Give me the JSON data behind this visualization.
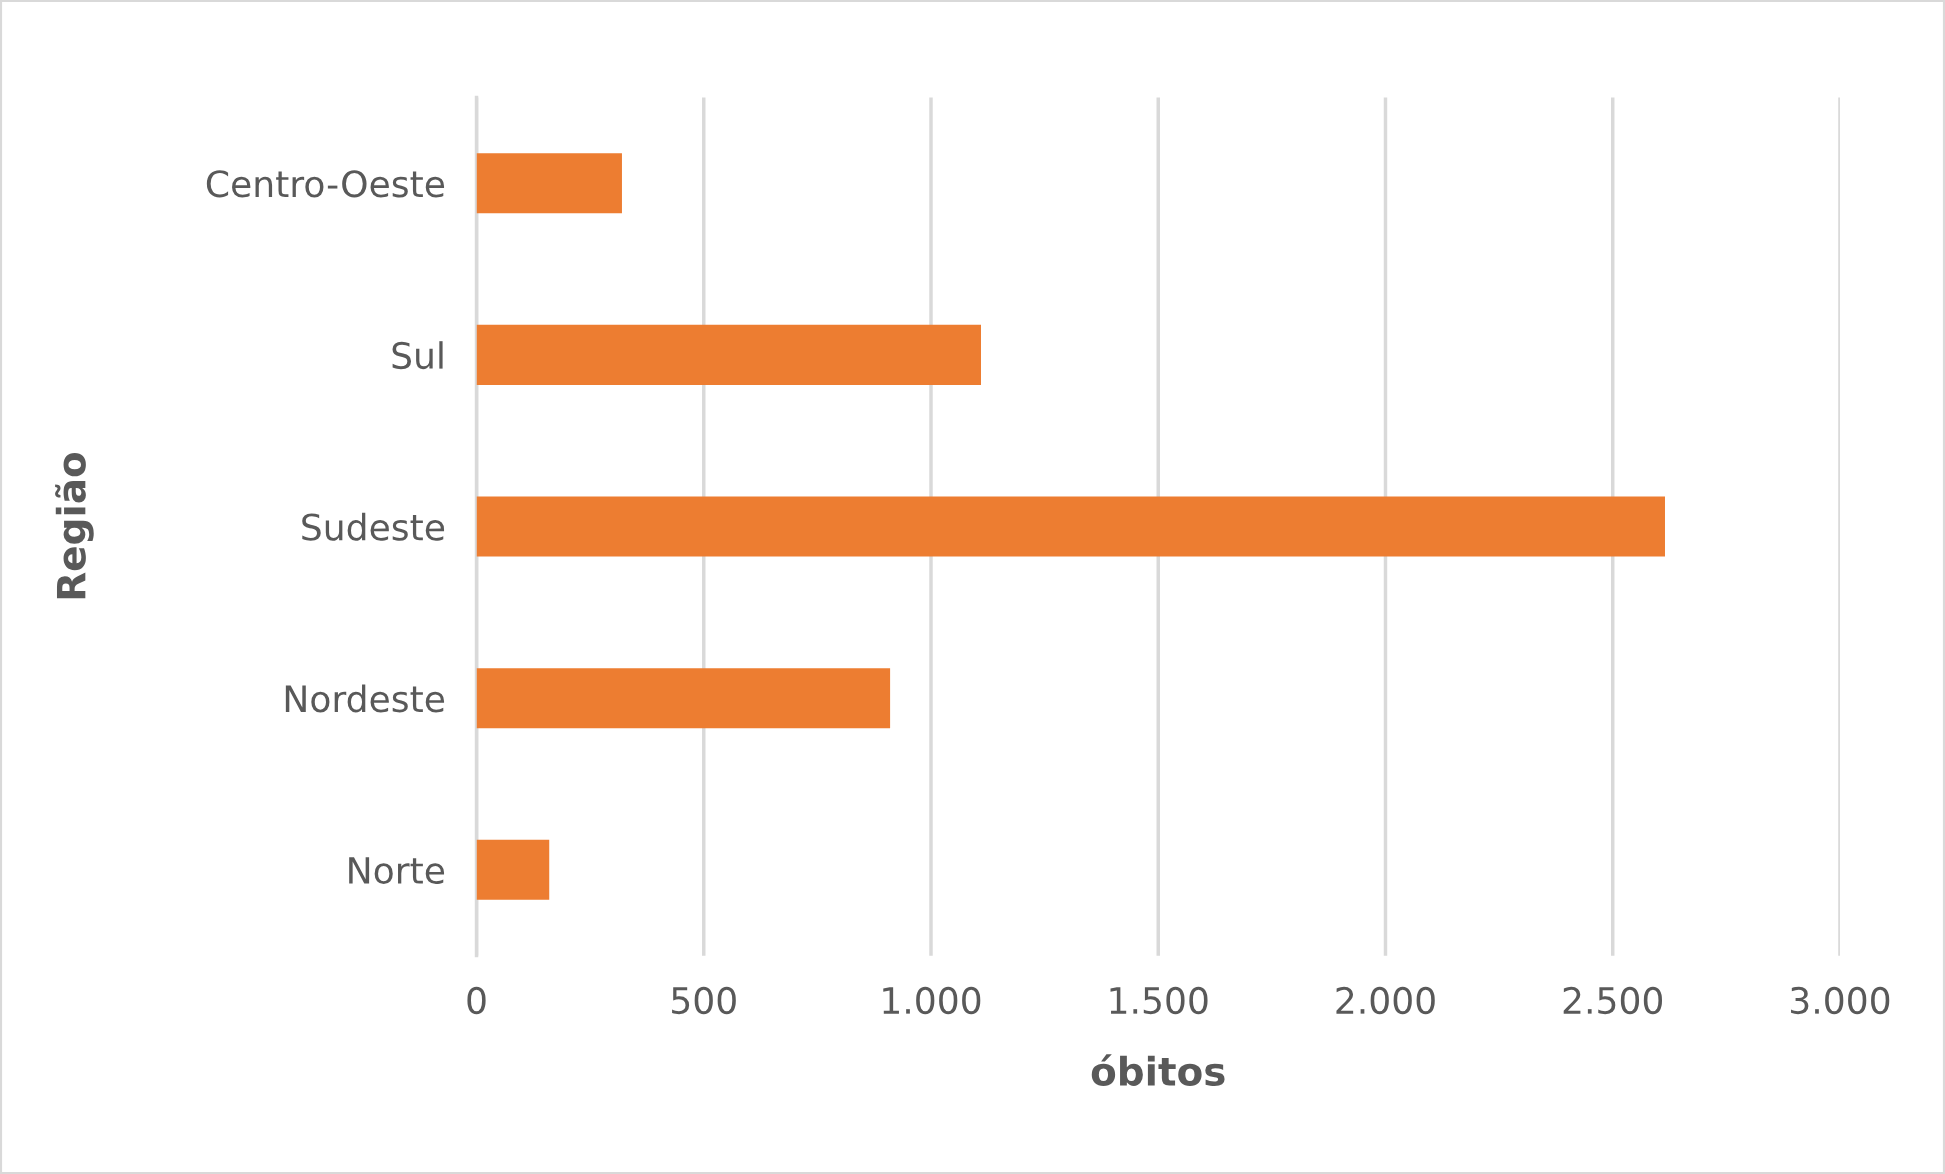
{
  "chart_data": {
    "type": "bar",
    "orientation": "horizontal",
    "xlabel": "óbitos",
    "ylabel": "Região",
    "categories": [
      "Centro-Oeste",
      "Sul",
      "Sudeste",
      "Nordeste",
      "Norte"
    ],
    "values": [
      320,
      1110,
      2615,
      910,
      160
    ],
    "color": "#ed7d31",
    "xlim": [
      0,
      3000
    ],
    "xticks": [
      0,
      500,
      {
        "value": 1000,
        "label": "1.000"
      },
      {
        "value": 1500,
        "label": "1.500"
      },
      {
        "value": 2000,
        "label": "2.000"
      },
      {
        "value": 2500,
        "label": "2.500"
      },
      {
        "value": 3000,
        "label": "3.000"
      }
    ],
    "grid": "x"
  }
}
